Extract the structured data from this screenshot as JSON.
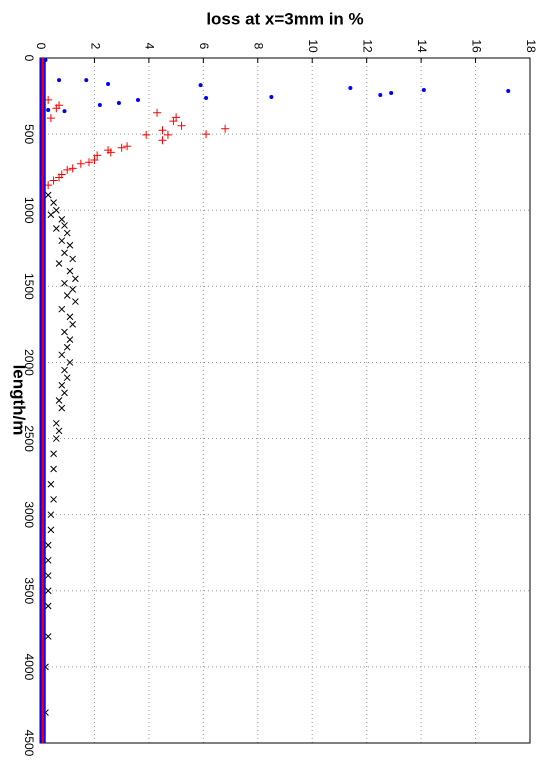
{
  "chart_data": {
    "type": "scatter",
    "title": "loss at x=3mm in %",
    "xlabel": "length/m",
    "xlim": [
      0,
      4500
    ],
    "xticks": [
      0,
      500,
      1000,
      1500,
      2000,
      2500,
      3000,
      3500,
      4000,
      4500
    ],
    "ylim": [
      0,
      18
    ],
    "yticks": [
      0,
      2,
      4,
      6,
      8,
      10,
      12,
      14,
      16,
      18
    ],
    "grid": true,
    "series": [
      {
        "color": "#0000ff",
        "marker": "dot",
        "x": [
          217,
          210,
          230,
          243,
          197,
          256,
          263,
          178,
          276,
          296,
          171,
          309,
          145,
          349,
          145,
          342,
          13
        ],
        "values": [
          17.2,
          14.1,
          12.9,
          12.5,
          11.4,
          8.5,
          6.1,
          5.9,
          3.6,
          2.9,
          2.5,
          2.2,
          1.7,
          0.9,
          0.7,
          0.3,
          0.2
        ]
      },
      {
        "color": "#ff0000",
        "marker": "plus",
        "x": [
          390,
          445,
          475,
          505,
          540,
          505,
          360,
          415,
          465,
          500,
          580,
          590,
          620,
          605,
          640,
          670,
          685,
          695,
          725,
          735,
          765,
          785,
          805,
          835,
          310,
          330,
          275,
          395
        ],
        "values": [
          5.0,
          5.2,
          4.5,
          4.7,
          4.5,
          3.9,
          4.3,
          4.9,
          6.8,
          6.1,
          3.2,
          3.0,
          2.6,
          2.5,
          2.1,
          2.0,
          1.8,
          1.5,
          1.2,
          1.0,
          0.8,
          0.7,
          0.5,
          0.3,
          0.7,
          0.6,
          0.3,
          0.4
        ]
      },
      {
        "color": "#000000",
        "marker": "cross",
        "x": [
          900,
          950,
          1000,
          1030,
          1060,
          1100,
          1120,
          1150,
          1200,
          1230,
          1280,
          1320,
          1350,
          1400,
          1450,
          1480,
          1520,
          1560,
          1600,
          1650,
          1700,
          1750,
          1800,
          1850,
          1900,
          1950,
          2000,
          2050,
          2100,
          2150,
          2200,
          2250,
          2300,
          2400,
          2450,
          2500,
          2600,
          2700,
          2800,
          2900,
          3000,
          3100,
          3200,
          3300,
          3400,
          3500,
          3600,
          3800,
          4000,
          4300
        ],
        "values": [
          0.3,
          0.5,
          0.6,
          0.4,
          0.8,
          0.9,
          0.6,
          1.0,
          0.8,
          1.1,
          0.9,
          1.2,
          0.7,
          1.1,
          1.3,
          0.9,
          1.2,
          1.0,
          1.3,
          0.8,
          1.1,
          1.2,
          0.9,
          1.1,
          1.0,
          0.8,
          1.1,
          0.9,
          1.0,
          0.8,
          0.9,
          0.7,
          0.8,
          0.6,
          0.7,
          0.6,
          0.5,
          0.5,
          0.4,
          0.5,
          0.4,
          0.4,
          0.3,
          0.3,
          0.3,
          0.3,
          0.3,
          0.3,
          0.2,
          0.2
        ]
      },
      {
        "color": "#0000ff",
        "marker": "line",
        "width": 6,
        "x": [
          0,
          4500
        ],
        "values": [
          0.1,
          0.1
        ]
      },
      {
        "color": "#ff0000",
        "marker": "line",
        "width": 2,
        "x": [
          0,
          4500
        ],
        "values": [
          0.1,
          0.1
        ]
      }
    ]
  }
}
